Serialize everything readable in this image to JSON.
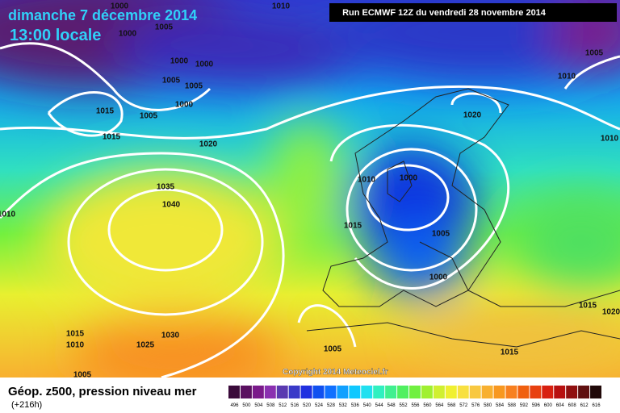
{
  "header": {
    "date": "dimanche 7 décembre 2014",
    "time": "13:00 locale",
    "run": "Run ECMWF 12Z du vendredi 28 novembre 2014"
  },
  "footer": {
    "title": "Géop. z500, pression niveau mer",
    "lead": "(+216h)",
    "copyright": "Copyright 2014 Meteociel.fr"
  },
  "isobar_labels": [
    1000,
    1010,
    1005,
    1000,
    1000,
    1000,
    1005,
    1005,
    1000,
    1015,
    1005,
    1015,
    1020,
    1020,
    1005,
    1010,
    1010,
    1010,
    1000,
    1035,
    1040,
    1010,
    1015,
    1005,
    1000,
    1015,
    1020,
    1015,
    1010,
    1030,
    1025,
    1005,
    1015,
    1005
  ],
  "colorbar": {
    "labels": [
      "496",
      "500",
      "504",
      "508",
      "512",
      "516",
      "520",
      "524",
      "528",
      "532",
      "536",
      "540",
      "544",
      "548",
      "552",
      "556",
      "560",
      "564",
      "568",
      "572",
      "576",
      "580",
      "584",
      "588",
      "592",
      "596",
      "600",
      "604",
      "608",
      "612",
      "616"
    ],
    "colors": [
      "#3a0a3a",
      "#5a1060",
      "#7a1a8a",
      "#8a30b0",
      "#5a3ab0",
      "#3a3ac8",
      "#2030e0",
      "#1050f0",
      "#1070ff",
      "#10a0ff",
      "#10c8ff",
      "#20e0f0",
      "#30f0c0",
      "#40f090",
      "#50f060",
      "#70f040",
      "#a0f030",
      "#d0f030",
      "#f0f030",
      "#f8e040",
      "#f8c840",
      "#f8b030",
      "#f89820",
      "#f88020",
      "#f06010",
      "#e84010",
      "#d82010",
      "#b81010",
      "#901010",
      "#601010",
      "#200808"
    ]
  }
}
